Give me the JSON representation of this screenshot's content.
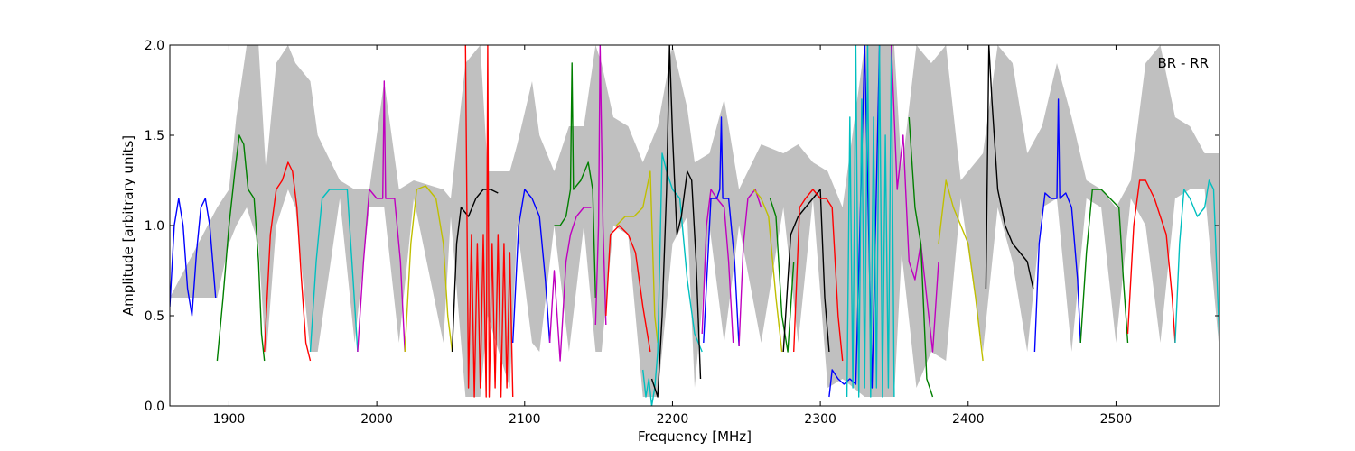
{
  "chart_data": {
    "type": "line",
    "xlabel": "Frequency [MHz]",
    "ylabel": "Amplitude [arbitrary units]",
    "annotation": "BR - RR",
    "xlim": [
      1860,
      2570
    ],
    "ylim": [
      0.0,
      2.0
    ],
    "x_ticks": [
      1900,
      2000,
      2100,
      2200,
      2300,
      2400,
      2500
    ],
    "x_tick_labels": [
      "1900",
      "2000",
      "2100",
      "2200",
      "2300",
      "2400",
      "2500"
    ],
    "y_ticks": [
      0.0,
      0.5,
      1.0,
      1.5,
      2.0
    ],
    "y_tick_labels": [
      "0.0",
      "0.5",
      "1.0",
      "1.5",
      "2.0"
    ],
    "grid": false,
    "colors": {
      "background_band": "#c0c0c0",
      "blue": "#0000ff",
      "green": "#007f00",
      "red": "#ff0000",
      "cyan": "#00bfbf",
      "magenta": "#bf00bf",
      "yellow": "#bfbf00",
      "black": "#000000"
    },
    "background_envelope": {
      "x": [
        1860,
        1892,
        1900,
        1905,
        1912,
        1920,
        1925,
        1932,
        1940,
        1945,
        1955,
        1960,
        1975,
        1985,
        1995,
        2005,
        2015,
        2025,
        2045,
        2050,
        2060,
        2070,
        2075,
        2090,
        2095,
        2105,
        2110,
        2120,
        2130,
        2140,
        2148,
        2152,
        2160,
        2170,
        2180,
        2190,
        2200,
        2210,
        2215,
        2225,
        2235,
        2245,
        2260,
        2275,
        2285,
        2295,
        2305,
        2315,
        2330,
        2345,
        2350,
        2355,
        2365,
        2375,
        2385,
        2395,
        2410,
        2420,
        2430,
        2440,
        2450,
        2460,
        2470,
        2480,
        2490,
        2500,
        2510,
        2520,
        2530,
        2540,
        2550,
        2560,
        2570
      ],
      "upper": [
        0.6,
        1.1,
        1.2,
        1.6,
        2.0,
        2.0,
        1.3,
        1.9,
        2.0,
        1.9,
        1.8,
        1.5,
        1.25,
        1.2,
        1.2,
        1.8,
        1.2,
        1.25,
        1.2,
        1.15,
        1.9,
        2.0,
        1.3,
        1.3,
        1.45,
        1.8,
        1.5,
        1.3,
        1.55,
        1.55,
        2.0,
        1.9,
        1.6,
        1.55,
        1.35,
        1.55,
        2.0,
        1.65,
        1.35,
        1.4,
        1.7,
        1.2,
        1.45,
        1.4,
        1.45,
        1.35,
        1.3,
        1.1,
        2.0,
        2.0,
        2.0,
        1.3,
        2.0,
        1.9,
        2.0,
        1.25,
        1.4,
        2.0,
        1.9,
        1.4,
        1.55,
        1.9,
        1.6,
        1.25,
        1.2,
        1.1,
        1.25,
        1.9,
        2.0,
        1.6,
        1.55,
        1.4,
        1.4
      ],
      "lower": [
        0.6,
        0.6,
        0.9,
        1.0,
        1.1,
        0.9,
        0.25,
        1.0,
        1.2,
        1.1,
        0.3,
        0.3,
        1.15,
        0.35,
        1.1,
        1.1,
        0.35,
        1.15,
        0.35,
        1.05,
        0.05,
        0.05,
        0.5,
        0.1,
        1.0,
        0.35,
        0.3,
        1.0,
        0.3,
        1.0,
        0.3,
        0.3,
        1.0,
        0.95,
        0.05,
        0.05,
        0.9,
        1.05,
        0.1,
        1.0,
        0.35,
        1.0,
        0.35,
        1.1,
        0.35,
        1.15,
        0.1,
        0.15,
        0.05,
        0.05,
        0.05,
        0.85,
        0.1,
        0.3,
        0.25,
        1.15,
        0.3,
        1.1,
        0.8,
        0.3,
        1.1,
        1.15,
        0.3,
        1.15,
        1.1,
        0.35,
        1.15,
        1.0,
        0.35,
        1.15,
        1.2,
        1.2,
        0.3
      ]
    },
    "series": [
      {
        "color": "blue",
        "x": [
          1860,
          1863,
          1866,
          1869,
          1872,
          1875,
          1878,
          1881,
          1884,
          1887,
          1890,
          1891
        ],
        "y": [
          0.55,
          1.0,
          1.15,
          1.0,
          0.65,
          0.5,
          0.85,
          1.1,
          1.15,
          1.0,
          0.7,
          0.6
        ]
      },
      {
        "color": "green",
        "x": [
          1892,
          1896,
          1900,
          1904,
          1907,
          1910,
          1913,
          1917,
          1920,
          1922,
          1924
        ],
        "y": [
          0.25,
          0.6,
          1.0,
          1.3,
          1.5,
          1.45,
          1.2,
          1.15,
          0.8,
          0.4,
          0.25
        ]
      },
      {
        "color": "red",
        "x": [
          1924,
          1928,
          1932,
          1936,
          1940,
          1943,
          1946,
          1949,
          1952,
          1955
        ],
        "y": [
          0.3,
          0.95,
          1.2,
          1.25,
          1.35,
          1.3,
          1.1,
          0.7,
          0.35,
          0.25
        ]
      },
      {
        "color": "cyan",
        "x": [
          1955,
          1959,
          1963,
          1968,
          1974,
          1980,
          1984,
          1987
        ],
        "y": [
          0.3,
          0.8,
          1.15,
          1.2,
          1.2,
          1.2,
          0.7,
          0.3
        ]
      },
      {
        "color": "magenta",
        "x": [
          1987,
          1991,
          1995,
          2000,
          2004,
          2005,
          2006,
          2012,
          2016,
          2019
        ],
        "y": [
          0.3,
          0.8,
          1.2,
          1.15,
          1.15,
          1.8,
          1.15,
          1.15,
          0.8,
          0.3
        ]
      },
      {
        "color": "yellow",
        "x": [
          2019,
          2023,
          2027,
          2033,
          2040,
          2045,
          2048,
          2051
        ],
        "y": [
          0.3,
          0.9,
          1.2,
          1.22,
          1.15,
          0.9,
          0.5,
          0.3
        ]
      },
      {
        "color": "black",
        "x": [
          2051,
          2054,
          2057,
          2062,
          2067,
          2072,
          2077,
          2082
        ],
        "y": [
          0.3,
          0.9,
          1.1,
          1.05,
          1.15,
          1.2,
          1.2,
          1.18
        ]
      },
      {
        "color": "red",
        "x": [
          2060,
          2062,
          2064,
          2066,
          2068,
          2070,
          2072,
          2074,
          2075,
          2076,
          2078,
          2080,
          2082,
          2084,
          2086,
          2088,
          2090,
          2092
        ],
        "y": [
          2.0,
          0.1,
          0.95,
          0.05,
          0.9,
          0.1,
          0.95,
          0.05,
          2.0,
          0.05,
          0.9,
          0.1,
          0.95,
          0.05,
          0.9,
          0.1,
          0.85,
          0.05
        ]
      },
      {
        "color": "blue",
        "x": [
          2092,
          2096,
          2100,
          2105,
          2110,
          2114,
          2117
        ],
        "y": [
          0.35,
          1.0,
          1.2,
          1.15,
          1.05,
          0.7,
          0.35
        ]
      },
      {
        "color": "magenta",
        "x": [
          2117,
          2120,
          2124,
          2128,
          2131,
          2135,
          2140,
          2145
        ],
        "y": [
          0.35,
          0.75,
          0.25,
          0.8,
          0.95,
          1.05,
          1.1,
          1.1
        ]
      },
      {
        "color": "green",
        "x": [
          2120,
          2124,
          2128,
          2131,
          2132,
          2133,
          2138,
          2143,
          2146,
          2148
        ],
        "y": [
          1.0,
          1.0,
          1.05,
          1.2,
          1.9,
          1.2,
          1.25,
          1.35,
          1.2,
          0.6
        ]
      },
      {
        "color": "magenta",
        "x": [
          2148,
          2150,
          2151,
          2153,
          2155
        ],
        "y": [
          0.45,
          1.0,
          2.0,
          1.0,
          0.45
        ]
      },
      {
        "color": "red",
        "x": [
          2155,
          2158,
          2164,
          2170,
          2175,
          2180,
          2185
        ],
        "y": [
          0.5,
          0.95,
          1.0,
          0.95,
          0.85,
          0.55,
          0.3
        ]
      },
      {
        "color": "yellow",
        "x": [
          2162,
          2168,
          2174,
          2180,
          2185,
          2188,
          2190
        ],
        "y": [
          1.0,
          1.05,
          1.05,
          1.1,
          1.3,
          0.5,
          0.35
        ]
      },
      {
        "color": "cyan",
        "x": [
          2180,
          2182,
          2184,
          2186,
          2188,
          2190,
          2193,
          2196,
          2200,
          2205,
          2210,
          2215,
          2220
        ],
        "y": [
          0.2,
          0.05,
          0.15,
          0.0,
          0.1,
          0.3,
          1.4,
          1.3,
          1.2,
          1.15,
          0.7,
          0.4,
          0.3
        ]
      },
      {
        "color": "black",
        "x": [
          2186,
          2190,
          2193,
          2196,
          2198,
          2200,
          2203,
          2206,
          2210,
          2213,
          2216,
          2219
        ],
        "y": [
          0.15,
          0.05,
          0.5,
          1.2,
          2.0,
          1.5,
          0.95,
          1.05,
          1.3,
          1.25,
          0.8,
          0.15
        ]
      },
      {
        "color": "magenta",
        "x": [
          2220,
          2223,
          2226,
          2230,
          2235,
          2238,
          2241
        ],
        "y": [
          0.4,
          1.0,
          1.2,
          1.15,
          1.1,
          0.8,
          0.35
        ]
      },
      {
        "color": "blue",
        "x": [
          2221,
          2226,
          2230,
          2232,
          2233,
          2234,
          2238,
          2242,
          2245
        ],
        "y": [
          0.35,
          1.15,
          1.15,
          1.2,
          1.6,
          1.15,
          1.15,
          0.8,
          0.33
        ]
      },
      {
        "color": "magenta",
        "x": [
          2245,
          2248,
          2251,
          2256,
          2260
        ],
        "y": [
          0.33,
          0.9,
          1.15,
          1.2,
          1.1
        ]
      },
      {
        "color": "yellow",
        "x": [
          2255,
          2260,
          2265,
          2270,
          2274
        ],
        "y": [
          1.2,
          1.15,
          1.05,
          0.6,
          0.3
        ]
      },
      {
        "color": "green",
        "x": [
          2266,
          2270,
          2274,
          2278,
          2282
        ],
        "y": [
          1.15,
          1.05,
          0.5,
          0.3,
          0.8
        ]
      },
      {
        "color": "black",
        "x": [
          2275,
          2280,
          2285,
          2290,
          2295,
          2300,
          2303,
          2306
        ],
        "y": [
          0.3,
          0.95,
          1.05,
          1.1,
          1.15,
          1.2,
          0.6,
          0.3
        ]
      },
      {
        "color": "red",
        "x": [
          2282,
          2286,
          2290,
          2295,
          2300,
          2304,
          2308,
          2312,
          2315
        ],
        "y": [
          0.3,
          1.1,
          1.15,
          1.2,
          1.15,
          1.15,
          1.1,
          0.5,
          0.25
        ]
      },
      {
        "color": "blue",
        "x": [
          2306,
          2308,
          2312,
          2316,
          2320,
          2324,
          2330,
          2335,
          2340
        ],
        "y": [
          0.05,
          0.2,
          0.15,
          0.12,
          0.15,
          0.12,
          2.0,
          0.1,
          2.0
        ]
      },
      {
        "color": "cyan",
        "x": [
          2318,
          2320,
          2322,
          2324,
          2326,
          2328,
          2330,
          2332,
          2334,
          2336,
          2338,
          2340,
          2342,
          2344,
          2346,
          2348,
          2350
        ],
        "y": [
          0.05,
          1.6,
          0.1,
          2.0,
          0.05,
          1.7,
          0.1,
          2.0,
          0.05,
          1.6,
          0.1,
          2.0,
          0.05,
          1.5,
          0.1,
          2.0,
          0.05
        ]
      },
      {
        "color": "magenta",
        "x": [
          2348,
          2352,
          2356,
          2360,
          2364,
          2368,
          2372,
          2376,
          2380
        ],
        "y": [
          2.0,
          1.2,
          1.5,
          0.8,
          0.7,
          0.9,
          0.6,
          0.3,
          0.8
        ]
      },
      {
        "color": "green",
        "x": [
          2360,
          2364,
          2368,
          2372,
          2376
        ],
        "y": [
          1.6,
          1.1,
          0.9,
          0.15,
          0.05
        ]
      },
      {
        "color": "yellow",
        "x": [
          2380,
          2385,
          2390,
          2395,
          2400,
          2405,
          2410
        ],
        "y": [
          0.9,
          1.25,
          1.1,
          1.0,
          0.9,
          0.6,
          0.25
        ]
      },
      {
        "color": "black",
        "x": [
          2412,
          2414,
          2416,
          2420,
          2425,
          2430,
          2435,
          2440,
          2444
        ],
        "y": [
          0.65,
          2.0,
          1.7,
          1.2,
          1.0,
          0.9,
          0.85,
          0.8,
          0.65
        ]
      },
      {
        "color": "blue",
        "x": [
          2445,
          2448,
          2452,
          2456,
          2460,
          2461,
          2462,
          2466,
          2470,
          2474,
          2476
        ],
        "y": [
          0.3,
          0.9,
          1.18,
          1.15,
          1.15,
          1.7,
          1.15,
          1.18,
          1.1,
          0.7,
          0.35
        ]
      },
      {
        "color": "green",
        "x": [
          2476,
          2480,
          2484,
          2490,
          2496,
          2502,
          2505,
          2508
        ],
        "y": [
          0.35,
          0.85,
          1.2,
          1.2,
          1.15,
          1.1,
          0.7,
          0.35
        ]
      },
      {
        "color": "red",
        "x": [
          2508,
          2512,
          2516,
          2520,
          2526,
          2530,
          2534,
          2538,
          2540
        ],
        "y": [
          0.4,
          1.0,
          1.25,
          1.25,
          1.15,
          1.05,
          0.95,
          0.6,
          0.35
        ]
      },
      {
        "color": "cyan",
        "x": [
          2540,
          2543,
          2546,
          2550,
          2555,
          2560,
          2563,
          2566,
          2570
        ],
        "y": [
          0.35,
          0.9,
          1.2,
          1.15,
          1.05,
          1.1,
          1.25,
          1.2,
          0.35
        ]
      }
    ]
  }
}
